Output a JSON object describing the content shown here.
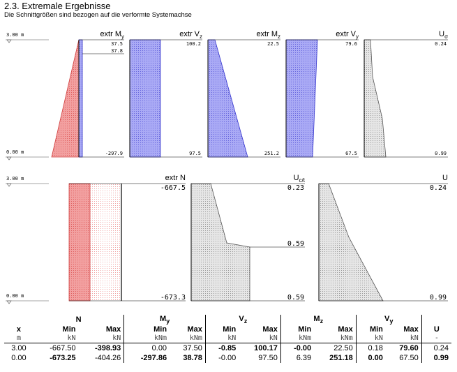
{
  "header": {
    "title": "2.3. Extremale Ergebnisse",
    "subtitle": "Die Schnittgrößen sind bezogen auf die verformte Systemachse"
  },
  "colors": {
    "moment_fill": "#f08080",
    "shear_fill": "#9999ee",
    "normal_fill": "#f08080",
    "utilization_fill": "#d0d0d0"
  },
  "chart_data": [
    {
      "type": "area",
      "id": "extr-my",
      "title": "extr M",
      "title_sub": "y",
      "y_labels": [
        "3.00 m",
        "0.00 m"
      ],
      "x": [
        3.0,
        2.9,
        0.0
      ],
      "min": [
        -0.0,
        -0.0,
        -297.86
      ],
      "max": [
        37.5,
        37.8,
        38.78
      ],
      "labels": [
        "37.5",
        "37.8",
        "-297.9"
      ]
    },
    {
      "type": "area",
      "id": "extr-vz",
      "title": "extr V",
      "title_sub": "z",
      "x": [
        3.0,
        0.0
      ],
      "values": [
        100.2,
        97.5
      ],
      "labels": [
        "100.2",
        "97.5"
      ]
    },
    {
      "type": "area",
      "id": "extr-mz",
      "title": "extr M",
      "title_sub": "z",
      "x": [
        3.0,
        0.0
      ],
      "values": [
        22.5,
        251.2
      ],
      "labels": [
        "22.5",
        "251.2"
      ]
    },
    {
      "type": "area",
      "id": "extr-vy",
      "title": "extr V",
      "title_sub": "y",
      "x": [
        3.0,
        0.0
      ],
      "values": [
        79.6,
        67.5
      ],
      "labels": [
        "79.6",
        "67.5"
      ]
    },
    {
      "type": "area",
      "id": "u-sigma",
      "title": "U",
      "title_sub": "σ",
      "x": [
        3.0,
        1.5,
        0.0
      ],
      "values": [
        0.24,
        0.45,
        0.99
      ],
      "labels": [
        "0.24",
        "0.99"
      ]
    },
    {
      "type": "area",
      "id": "extr-n",
      "title": "extr N",
      "title_sub": "",
      "y_labels": [
        "3.00 m",
        "0.00 m"
      ],
      "x": [
        3.0,
        0.0
      ],
      "min": [
        -667.5,
        -673.3
      ],
      "max": [
        -398.93,
        -404.26
      ],
      "labels": [
        "-667.5",
        "-673.3"
      ]
    },
    {
      "type": "area",
      "id": "u-ct",
      "title": "U",
      "title_sub": "c/t",
      "x": [
        3.0,
        1.65,
        1.55,
        0.0
      ],
      "values": [
        0.23,
        0.41,
        0.59,
        0.59
      ],
      "labels": [
        "0.23",
        "0.59",
        "0.59"
      ]
    },
    {
      "type": "area",
      "id": "u-total",
      "title": "U",
      "title_sub": "",
      "x": [
        3.0,
        0.0
      ],
      "values": [
        0.24,
        0.99
      ],
      "labels": [
        "0.24",
        "0.99"
      ]
    }
  ],
  "table": {
    "groups": [
      {
        "label": "N",
        "sub": ""
      },
      {
        "label": "M",
        "sub": "y"
      },
      {
        "label": "V",
        "sub": "z"
      },
      {
        "label": "M",
        "sub": "z"
      },
      {
        "label": "V",
        "sub": "y"
      }
    ],
    "x_header": "x",
    "x_unit": "m",
    "min_label": "Min",
    "max_label": "Max",
    "u_header": "U",
    "u_unit": "-",
    "units": [
      "kN",
      "kN",
      "kNm",
      "kNm",
      "kN",
      "kN",
      "kNm",
      "kNm",
      "kN",
      "kN"
    ],
    "rows": [
      {
        "x": "3.00",
        "vals": [
          "-667.50",
          "-398.93",
          "0.00",
          "37.50",
          "-0.85",
          "100.17",
          "-0.00",
          "22.50",
          "0.18",
          "79.60"
        ],
        "bold": [
          false,
          true,
          false,
          false,
          true,
          true,
          true,
          false,
          false,
          true
        ],
        "u": "0.24",
        "u_bold": false
      },
      {
        "x": "0.00",
        "vals": [
          "-673.25",
          "-404.26",
          "-297.86",
          "38.78",
          "-0.00",
          "97.50",
          "6.39",
          "251.18",
          "0.00",
          "67.50"
        ],
        "bold": [
          true,
          false,
          true,
          true,
          false,
          false,
          false,
          true,
          true,
          false
        ],
        "u": "0.99",
        "u_bold": true
      }
    ]
  }
}
